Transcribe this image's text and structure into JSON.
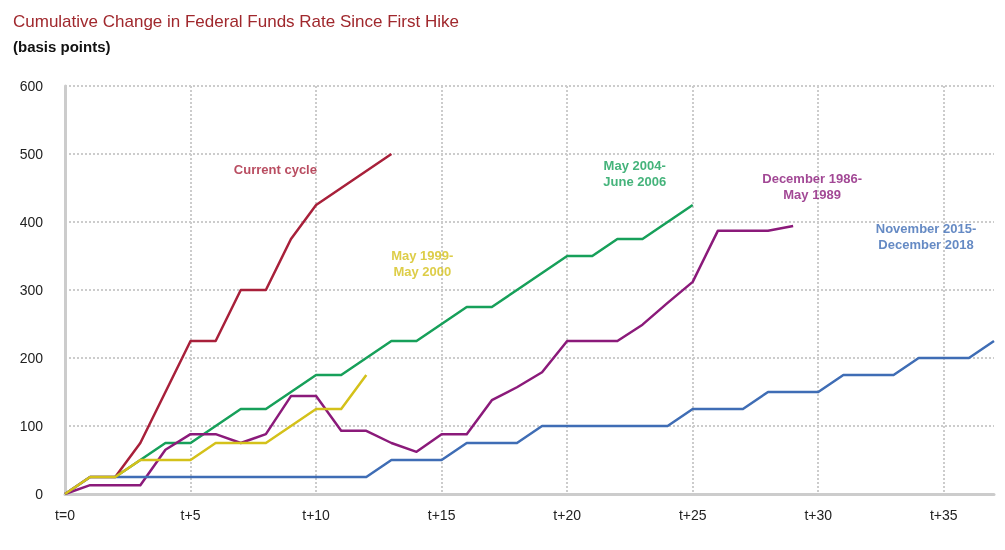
{
  "chart_data": {
    "type": "line",
    "title": "Cumulative Change in Federal Funds Rate Since First Hike",
    "subtitle": "(basis points)",
    "categories": [
      "t=0",
      null,
      null,
      null,
      null,
      "t+5",
      null,
      null,
      null,
      null,
      "t+10",
      null,
      null,
      null,
      null,
      "t+15",
      null,
      null,
      null,
      null,
      "t+20",
      null,
      null,
      null,
      null,
      "t+25",
      null,
      null,
      null,
      null,
      "t+30",
      null,
      null,
      null,
      null,
      "t+35",
      null,
      null
    ],
    "ylim": [
      0,
      600
    ],
    "yticks": [
      0,
      100,
      200,
      300,
      400,
      500,
      600
    ],
    "grid": true,
    "marker": "none",
    "line_style": "solid",
    "series": [
      {
        "name": "Current cycle",
        "color": "#a8203a",
        "values": [
          0,
          25,
          25,
          75,
          150,
          225,
          225,
          300,
          300,
          375,
          425,
          450,
          475,
          500,
          null,
          null,
          null,
          null,
          null,
          null,
          null,
          null,
          null,
          null,
          null,
          null,
          null,
          null,
          null,
          null,
          null,
          null,
          null,
          null,
          null,
          null,
          null,
          null
        ]
      },
      {
        "name": "May 2004-\nJune 2006",
        "color": "#17a05a",
        "values": [
          null,
          null,
          25,
          50,
          75,
          75,
          100,
          125,
          125,
          150,
          175,
          175,
          200,
          225,
          225,
          250,
          275,
          275,
          300,
          325,
          350,
          350,
          375,
          375,
          400,
          425,
          null,
          null,
          null,
          null,
          null,
          null,
          null,
          null,
          null,
          null,
          null,
          null
        ]
      },
      {
        "name": "December 1986-\nMay 1989",
        "color": "#8b1a7a",
        "values": [
          0,
          13,
          13,
          13,
          65,
          88,
          88,
          75,
          88,
          144,
          144,
          93,
          93,
          75,
          62,
          88,
          88,
          138,
          157,
          179,
          225,
          225,
          225,
          249,
          281,
          312,
          387,
          387,
          387,
          394,
          null,
          null,
          null,
          null,
          null,
          null,
          null,
          null
        ]
      },
      {
        "name": "November 2015-\nDecember 2018",
        "color": "#3f6db5",
        "values": [
          0,
          25,
          25,
          25,
          25,
          25,
          25,
          25,
          25,
          25,
          25,
          25,
          25,
          50,
          50,
          50,
          75,
          75,
          75,
          100,
          100,
          100,
          100,
          100,
          100,
          125,
          125,
          125,
          150,
          150,
          150,
          175,
          175,
          175,
          200,
          200,
          200,
          225
        ]
      },
      {
        "name": "May 1999-\nMay 2000",
        "color": "#d4c11a",
        "values": [
          0,
          25,
          25,
          50,
          50,
          50,
          75,
          75,
          75,
          100,
          125,
          125,
          175,
          null,
          null,
          null,
          null,
          null,
          null,
          null,
          null,
          null,
          null,
          null,
          null,
          null,
          null,
          null,
          null,
          null,
          null,
          null,
          null,
          null,
          null,
          null,
          null,
          null
        ]
      }
    ]
  }
}
